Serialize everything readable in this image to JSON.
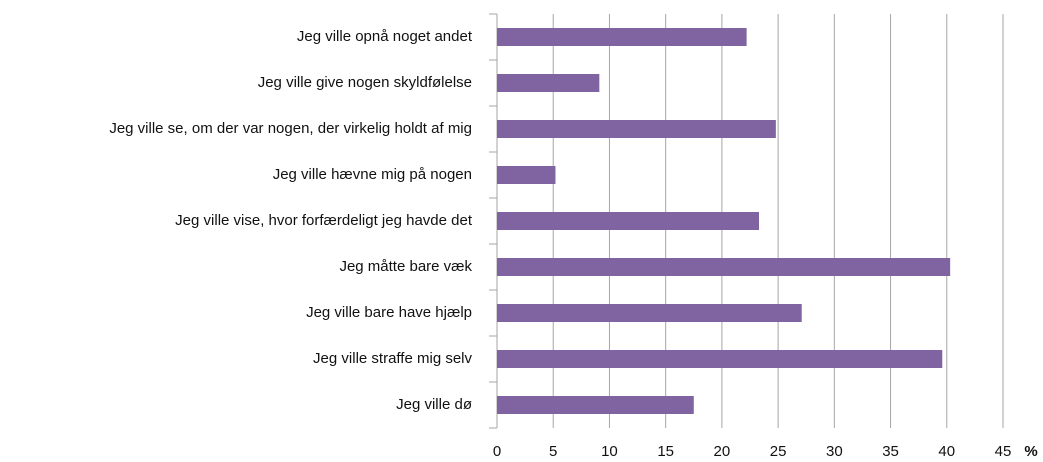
{
  "chart_data": {
    "type": "bar",
    "orientation": "horizontal",
    "categories": [
      "Jeg ville opnå noget andet",
      "Jeg ville give nogen skyldfølelse",
      "Jeg ville se, om der var nogen, der virkelig holdt af mig",
      "Jeg ville hævne mig på nogen",
      "Jeg ville vise, hvor forfærdeligt jeg havde det",
      "Jeg måtte bare væk",
      "Jeg ville bare have hjælp",
      "Jeg ville straffe mig selv",
      "Jeg ville dø"
    ],
    "values": [
      22.2,
      9.1,
      24.8,
      5.2,
      23.3,
      40.3,
      27.1,
      39.6,
      17.5
    ],
    "color": "#8064a2",
    "xlabel": "%",
    "xlim": [
      0,
      45
    ],
    "xticks": [
      0,
      5,
      10,
      15,
      20,
      25,
      30,
      35,
      40,
      45
    ],
    "grid": true
  }
}
